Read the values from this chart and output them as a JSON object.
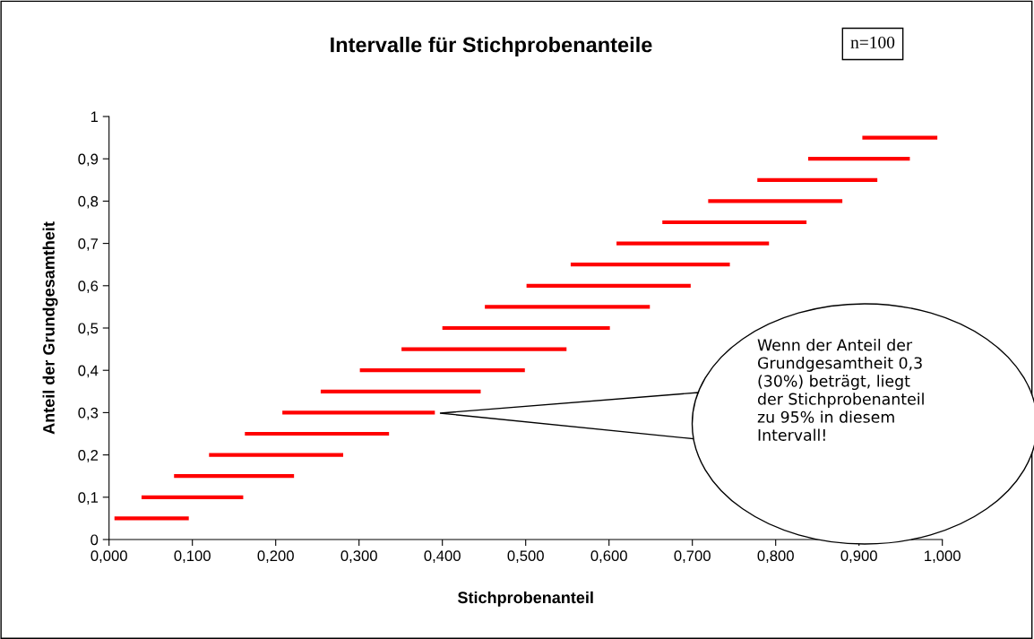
{
  "chart_data": {
    "type": "line",
    "title": "Intervalle für Stichprobenanteile",
    "xlabel": "Stichprobenanteil",
    "ylabel": "Anteil der Grundgesamtheit",
    "annotations": [
      "n=100",
      "Wenn der Anteil der\nGrundgesamtheit 0,3\n(30%) beträgt, liegt\nder Stichprobenanteil\nzu 95% in diesem\nIntervall!"
    ],
    "series": [
      {
        "color": "#ff0000",
        "x": [
          0.0065,
          0.0957
        ],
        "values": [
          0.05,
          0.05
        ]
      },
      {
        "color": "#ff0000",
        "x": [
          0.039,
          0.161
        ],
        "values": [
          0.1,
          0.1
        ]
      },
      {
        "color": "#ff0000",
        "x": [
          0.078,
          0.222
        ],
        "values": [
          0.15,
          0.15
        ]
      },
      {
        "color": "#ff0000",
        "x": [
          0.12,
          0.281
        ],
        "values": [
          0.2,
          0.2
        ]
      },
      {
        "color": "#ff0000",
        "x": [
          0.163,
          0.336
        ],
        "values": [
          0.25,
          0.25
        ]
      },
      {
        "color": "#ff0000",
        "x": [
          0.208,
          0.391
        ],
        "values": [
          0.3,
          0.3
        ]
      },
      {
        "color": "#ff0000",
        "x": [
          0.254,
          0.446
        ],
        "values": [
          0.35,
          0.35
        ]
      },
      {
        "color": "#ff0000",
        "x": [
          0.301,
          0.499
        ],
        "values": [
          0.4,
          0.4
        ]
      },
      {
        "color": "#ff0000",
        "x": [
          0.351,
          0.549
        ],
        "values": [
          0.45,
          0.45
        ]
      },
      {
        "color": "#ff0000",
        "x": [
          0.4,
          0.601
        ],
        "values": [
          0.5,
          0.5
        ]
      },
      {
        "color": "#ff0000",
        "x": [
          0.451,
          0.649
        ],
        "values": [
          0.55,
          0.55
        ]
      },
      {
        "color": "#ff0000",
        "x": [
          0.501,
          0.698
        ],
        "values": [
          0.6,
          0.6
        ]
      },
      {
        "color": "#ff0000",
        "x": [
          0.554,
          0.745
        ],
        "values": [
          0.65,
          0.65
        ]
      },
      {
        "color": "#ff0000",
        "x": [
          0.609,
          0.792
        ],
        "values": [
          0.7,
          0.7
        ]
      },
      {
        "color": "#ff0000",
        "x": [
          0.664,
          0.837
        ],
        "values": [
          0.75,
          0.75
        ]
      },
      {
        "color": "#ff0000",
        "x": [
          0.719,
          0.88
        ],
        "values": [
          0.8,
          0.8
        ]
      },
      {
        "color": "#ff0000",
        "x": [
          0.778,
          0.922
        ],
        "values": [
          0.85,
          0.85
        ]
      },
      {
        "color": "#ff0000",
        "x": [
          0.839,
          0.961
        ],
        "values": [
          0.9,
          0.9
        ]
      },
      {
        "color": "#ff0000",
        "x": [
          0.904,
          0.994
        ],
        "values": [
          0.95,
          0.95
        ]
      }
    ],
    "xlim": [
      0,
      1
    ],
    "ylim": [
      0,
      1
    ],
    "xticks": [
      {
        "value": 0,
        "label": "0,000"
      },
      {
        "value": 0.1,
        "label": "0,100"
      },
      {
        "value": 0.2,
        "label": "0,200"
      },
      {
        "value": 0.3,
        "label": "0,300"
      },
      {
        "value": 0.4,
        "label": "0,400"
      },
      {
        "value": 0.5,
        "label": "0,500"
      },
      {
        "value": 0.6,
        "label": "0,600"
      },
      {
        "value": 0.7,
        "label": "0,700"
      },
      {
        "value": 0.8,
        "label": "0,800"
      },
      {
        "value": 0.9,
        "label": "0,900"
      },
      {
        "value": 1,
        "label": "1,000"
      }
    ],
    "yticks": [
      0,
      {
        "value": 0.1,
        "label": "0,1"
      },
      {
        "value": 0.2,
        "label": "0,2"
      },
      {
        "value": 0.3,
        "label": "0,3"
      },
      {
        "value": 0.4,
        "label": "0,4"
      },
      {
        "value": 0.5,
        "label": "0,5"
      },
      {
        "value": 0.6,
        "label": "0,6"
      },
      {
        "value": 0.7,
        "label": "0,7"
      },
      {
        "value": 0.8,
        "label": "0,8"
      },
      {
        "value": 0.9,
        "label": "0,9"
      },
      1
    ],
    "marker": "none",
    "line_style": "solid"
  }
}
